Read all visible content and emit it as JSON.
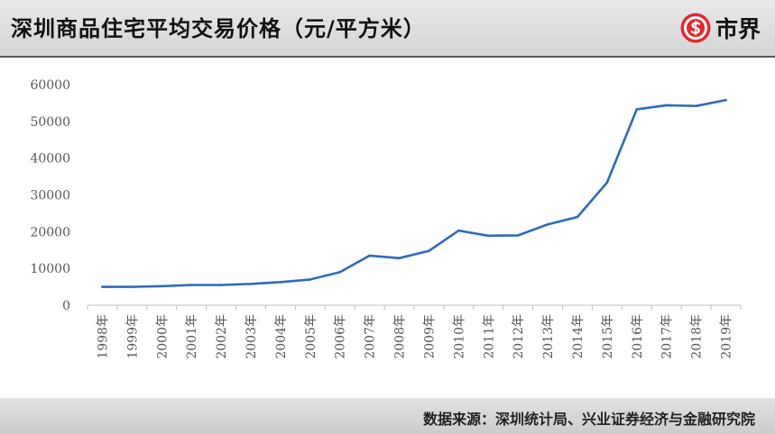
{
  "header": {
    "title": "深圳商品住宅平均交易价格（元/平方米）",
    "brand_name": "市界",
    "brand_icon": "dollar-circle-icon",
    "brand_color": "#e8262b"
  },
  "footer": {
    "source": "数据来源：深圳统计局、兴业证券经济与金融研究院"
  },
  "chart_data": {
    "type": "line",
    "title": "深圳商品住宅平均交易价格（元/平方米）",
    "xlabel": "",
    "ylabel": "",
    "ylim": [
      0,
      60000
    ],
    "yticks": [
      "0",
      "10000",
      "20000",
      "30000",
      "40000",
      "50000",
      "60000"
    ],
    "categories": [
      "1998年",
      "1999年",
      "2000年",
      "2001年",
      "2002年",
      "2003年",
      "2004年",
      "2005年",
      "2006年",
      "2007年",
      "2008年",
      "2009年",
      "2010年",
      "2011年",
      "2012年",
      "2013年",
      "2014年",
      "2015年",
      "2016年",
      "2017年",
      "2018年",
      "2019年"
    ],
    "series": [
      {
        "name": "",
        "color": "#2e6bbf",
        "values": [
          5000,
          5000,
          5200,
          5500,
          5500,
          5800,
          6300,
          7000,
          9000,
          13500,
          12800,
          14800,
          20300,
          18900,
          19000,
          22000,
          24000,
          33400,
          53300,
          54400,
          54200,
          55800
        ]
      }
    ],
    "grid": false,
    "legend": "none"
  }
}
